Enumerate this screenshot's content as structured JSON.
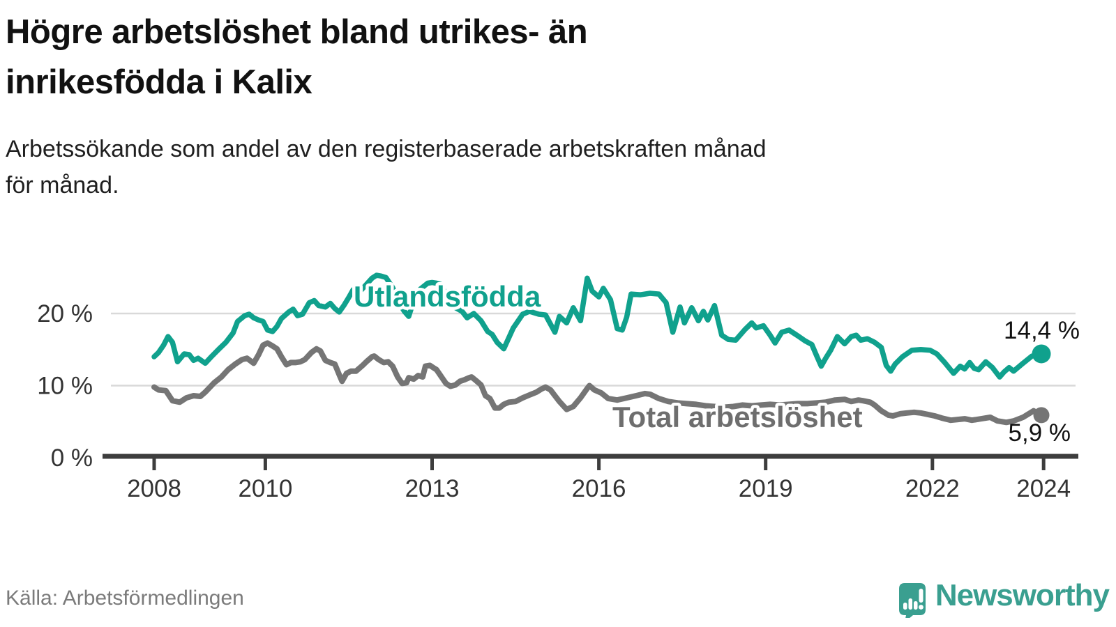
{
  "header": {
    "title_lines": [
      "Högre arbetslöshet bland utrikes- än",
      "inrikesfödda i Kalix"
    ],
    "subtitle_lines": [
      "Arbetssökande som andel av den registerbaserade arbetskraften månad",
      "för månad."
    ]
  },
  "footer": {
    "source": "Källa: Arbetsförmedlingen",
    "brand": "Newsworthy"
  },
  "colors": {
    "series_foreign_born": "#10a18d",
    "series_total": "#757575",
    "axis": "#3d3d3d",
    "grid": "#d9d9d9",
    "annotation": "#111111",
    "brand_teal": "#3a9f90"
  },
  "chart_data": {
    "type": "line",
    "title": "Högre arbetslöshet bland utrikes- än inrikesfödda i Kalix",
    "subtitle": "Arbetssökande som andel av den registerbaserade arbetskraften månad för månad.",
    "xlabel": "",
    "ylabel": "",
    "x_unit": "decimal_year",
    "xlim": [
      2007.9,
      2024.6
    ],
    "ylim": [
      0,
      27
    ],
    "grid": "horizontal",
    "legend_position": "inline-labels",
    "x_ticks": [
      2008,
      2010,
      2013,
      2016,
      2019,
      2022,
      2024
    ],
    "y_ticks": [
      {
        "value": 20,
        "label": "20 %"
      },
      {
        "value": 10,
        "label": "10 %"
      },
      {
        "value": 0,
        "label": "0 %"
      }
    ],
    "annotations": [
      {
        "series": "Utlandsfödda",
        "text": "14,4 %"
      },
      {
        "series": "Total arbetslöshet",
        "text": "5,9 %"
      }
    ],
    "series": [
      {
        "name": "Utlandsfödda",
        "color": "#10a18d",
        "stroke_width": 7.5,
        "end_value": 14.4,
        "end_label": "14,4 %",
        "points": [
          [
            2008.0,
            14.0
          ],
          [
            2008.08,
            14.6
          ],
          [
            2008.17,
            15.6
          ],
          [
            2008.25,
            16.8
          ],
          [
            2008.33,
            16.0
          ],
          [
            2008.42,
            13.3
          ],
          [
            2008.54,
            14.4
          ],
          [
            2008.63,
            14.3
          ],
          [
            2008.71,
            13.5
          ],
          [
            2008.79,
            13.8
          ],
          [
            2008.92,
            13.1
          ],
          [
            2009.04,
            14.1
          ],
          [
            2009.17,
            15.1
          ],
          [
            2009.29,
            16.0
          ],
          [
            2009.42,
            17.3
          ],
          [
            2009.5,
            18.9
          ],
          [
            2009.63,
            19.7
          ],
          [
            2009.71,
            19.9
          ],
          [
            2009.79,
            19.4
          ],
          [
            2009.88,
            19.1
          ],
          [
            2009.96,
            18.9
          ],
          [
            2010.04,
            17.7
          ],
          [
            2010.13,
            17.5
          ],
          [
            2010.21,
            18.2
          ],
          [
            2010.29,
            19.3
          ],
          [
            2010.42,
            20.2
          ],
          [
            2010.5,
            20.6
          ],
          [
            2010.58,
            19.7
          ],
          [
            2010.67,
            19.9
          ],
          [
            2010.79,
            21.5
          ],
          [
            2010.88,
            21.8
          ],
          [
            2010.96,
            21.1
          ],
          [
            2011.08,
            20.9
          ],
          [
            2011.17,
            21.4
          ],
          [
            2011.25,
            20.7
          ],
          [
            2011.33,
            20.2
          ],
          [
            2011.42,
            21.2
          ],
          [
            2011.5,
            22.2
          ],
          [
            2011.58,
            23.3
          ],
          [
            2011.67,
            22.8
          ],
          [
            2011.79,
            23.8
          ],
          [
            2011.92,
            24.9
          ],
          [
            2012.0,
            25.3
          ],
          [
            2012.08,
            25.2
          ],
          [
            2012.17,
            25.0
          ],
          [
            2012.29,
            23.6
          ],
          [
            2012.42,
            21.3
          ],
          [
            2012.5,
            20.3
          ],
          [
            2012.58,
            19.6
          ],
          [
            2012.67,
            21.8
          ],
          [
            2012.79,
            23.4
          ],
          [
            2012.92,
            24.2
          ],
          [
            2013.0,
            24.3
          ],
          [
            2013.08,
            24.2
          ],
          [
            2013.17,
            24.0
          ],
          [
            2013.29,
            21.7
          ],
          [
            2013.42,
            20.8
          ],
          [
            2013.54,
            20.3
          ],
          [
            2013.63,
            19.4
          ],
          [
            2013.75,
            20.0
          ],
          [
            2013.88,
            19.0
          ],
          [
            2014.0,
            17.5
          ],
          [
            2014.08,
            17.1
          ],
          [
            2014.17,
            16.0
          ],
          [
            2014.29,
            15.1
          ],
          [
            2014.46,
            18.0
          ],
          [
            2014.63,
            19.9
          ],
          [
            2014.75,
            20.3
          ],
          [
            2014.92,
            19.9
          ],
          [
            2015.04,
            19.8
          ],
          [
            2015.21,
            17.4
          ],
          [
            2015.29,
            19.6
          ],
          [
            2015.42,
            18.7
          ],
          [
            2015.54,
            20.8
          ],
          [
            2015.67,
            19.0
          ],
          [
            2015.79,
            24.9
          ],
          [
            2015.88,
            23.1
          ],
          [
            2016.0,
            22.3
          ],
          [
            2016.08,
            23.5
          ],
          [
            2016.21,
            21.9
          ],
          [
            2016.33,
            17.9
          ],
          [
            2016.42,
            17.7
          ],
          [
            2016.5,
            19.5
          ],
          [
            2016.58,
            22.7
          ],
          [
            2016.75,
            22.6
          ],
          [
            2016.92,
            22.8
          ],
          [
            2017.08,
            22.7
          ],
          [
            2017.21,
            21.5
          ],
          [
            2017.33,
            17.4
          ],
          [
            2017.46,
            20.9
          ],
          [
            2017.54,
            18.7
          ],
          [
            2017.67,
            20.8
          ],
          [
            2017.79,
            19.0
          ],
          [
            2017.88,
            20.3
          ],
          [
            2017.96,
            19.1
          ],
          [
            2018.08,
            21.1
          ],
          [
            2018.21,
            17.0
          ],
          [
            2018.33,
            16.4
          ],
          [
            2018.46,
            16.3
          ],
          [
            2018.63,
            17.8
          ],
          [
            2018.75,
            18.7
          ],
          [
            2018.83,
            18.0
          ],
          [
            2018.96,
            18.3
          ],
          [
            2019.08,
            17.0
          ],
          [
            2019.17,
            15.9
          ],
          [
            2019.29,
            17.4
          ],
          [
            2019.42,
            17.7
          ],
          [
            2019.58,
            16.9
          ],
          [
            2019.71,
            16.2
          ],
          [
            2019.83,
            15.7
          ],
          [
            2019.92,
            14.1
          ],
          [
            2020.0,
            12.7
          ],
          [
            2020.08,
            13.8
          ],
          [
            2020.17,
            14.9
          ],
          [
            2020.29,
            16.8
          ],
          [
            2020.42,
            15.8
          ],
          [
            2020.54,
            16.8
          ],
          [
            2020.63,
            17.0
          ],
          [
            2020.71,
            16.3
          ],
          [
            2020.83,
            16.5
          ],
          [
            2020.96,
            16.0
          ],
          [
            2021.08,
            15.3
          ],
          [
            2021.17,
            12.8
          ],
          [
            2021.25,
            12.0
          ],
          [
            2021.33,
            13.0
          ],
          [
            2021.46,
            14.0
          ],
          [
            2021.63,
            14.9
          ],
          [
            2021.79,
            15.0
          ],
          [
            2021.96,
            14.9
          ],
          [
            2022.08,
            14.4
          ],
          [
            2022.21,
            13.3
          ],
          [
            2022.38,
            11.7
          ],
          [
            2022.5,
            12.7
          ],
          [
            2022.58,
            12.3
          ],
          [
            2022.67,
            13.2
          ],
          [
            2022.75,
            12.4
          ],
          [
            2022.83,
            12.2
          ],
          [
            2022.96,
            13.3
          ],
          [
            2023.08,
            12.5
          ],
          [
            2023.21,
            11.2
          ],
          [
            2023.29,
            11.9
          ],
          [
            2023.38,
            12.5
          ],
          [
            2023.46,
            12.0
          ],
          [
            2023.63,
            13.1
          ],
          [
            2023.79,
            14.1
          ],
          [
            2023.96,
            14.4
          ]
        ]
      },
      {
        "name": "Total arbetslöshet",
        "color": "#757575",
        "stroke_width": 8,
        "end_value": 5.9,
        "end_label": "5,9 %",
        "points": [
          [
            2008.0,
            9.8
          ],
          [
            2008.08,
            9.4
          ],
          [
            2008.21,
            9.3
          ],
          [
            2008.33,
            7.9
          ],
          [
            2008.46,
            7.7
          ],
          [
            2008.58,
            8.3
          ],
          [
            2008.71,
            8.6
          ],
          [
            2008.83,
            8.5
          ],
          [
            2008.92,
            9.1
          ],
          [
            2009.08,
            10.4
          ],
          [
            2009.21,
            11.2
          ],
          [
            2009.33,
            12.2
          ],
          [
            2009.46,
            13.0
          ],
          [
            2009.58,
            13.6
          ],
          [
            2009.67,
            13.8
          ],
          [
            2009.79,
            13.1
          ],
          [
            2009.88,
            14.3
          ],
          [
            2009.96,
            15.6
          ],
          [
            2010.04,
            15.9
          ],
          [
            2010.13,
            15.5
          ],
          [
            2010.21,
            15.1
          ],
          [
            2010.29,
            14.0
          ],
          [
            2010.38,
            12.9
          ],
          [
            2010.46,
            13.2
          ],
          [
            2010.54,
            13.2
          ],
          [
            2010.63,
            13.3
          ],
          [
            2010.71,
            13.6
          ],
          [
            2010.83,
            14.6
          ],
          [
            2010.92,
            15.1
          ],
          [
            2010.99,
            14.8
          ],
          [
            2011.08,
            13.5
          ],
          [
            2011.17,
            13.2
          ],
          [
            2011.25,
            13.0
          ],
          [
            2011.33,
            11.5
          ],
          [
            2011.38,
            10.6
          ],
          [
            2011.46,
            11.7
          ],
          [
            2011.54,
            12.0
          ],
          [
            2011.63,
            12.0
          ],
          [
            2011.75,
            12.8
          ],
          [
            2011.83,
            13.4
          ],
          [
            2011.92,
            14.0
          ],
          [
            2011.96,
            14.1
          ],
          [
            2012.04,
            13.6
          ],
          [
            2012.13,
            13.2
          ],
          [
            2012.21,
            13.3
          ],
          [
            2012.29,
            12.7
          ],
          [
            2012.38,
            11.2
          ],
          [
            2012.46,
            10.3
          ],
          [
            2012.54,
            10.4
          ],
          [
            2012.58,
            11.1
          ],
          [
            2012.67,
            10.9
          ],
          [
            2012.75,
            11.4
          ],
          [
            2012.83,
            11.2
          ],
          [
            2012.88,
            12.7
          ],
          [
            2012.96,
            12.8
          ],
          [
            2013.04,
            12.4
          ],
          [
            2013.08,
            12.2
          ],
          [
            2013.17,
            11.2
          ],
          [
            2013.25,
            10.3
          ],
          [
            2013.33,
            9.9
          ],
          [
            2013.42,
            10.1
          ],
          [
            2013.5,
            10.6
          ],
          [
            2013.58,
            10.8
          ],
          [
            2013.67,
            11.1
          ],
          [
            2013.71,
            11.2
          ],
          [
            2013.79,
            10.7
          ],
          [
            2013.88,
            10.1
          ],
          [
            2013.96,
            8.6
          ],
          [
            2014.04,
            8.2
          ],
          [
            2014.13,
            6.9
          ],
          [
            2014.21,
            6.9
          ],
          [
            2014.29,
            7.4
          ],
          [
            2014.38,
            7.7
          ],
          [
            2014.5,
            7.8
          ],
          [
            2014.63,
            8.3
          ],
          [
            2014.75,
            8.7
          ],
          [
            2014.88,
            9.1
          ],
          [
            2014.96,
            9.5
          ],
          [
            2015.04,
            9.8
          ],
          [
            2015.13,
            9.4
          ],
          [
            2015.21,
            8.6
          ],
          [
            2015.29,
            7.8
          ],
          [
            2015.42,
            6.7
          ],
          [
            2015.54,
            7.1
          ],
          [
            2015.67,
            8.3
          ],
          [
            2015.79,
            9.6
          ],
          [
            2015.83,
            10.0
          ],
          [
            2015.92,
            9.4
          ],
          [
            2016.04,
            9.0
          ],
          [
            2016.17,
            8.2
          ],
          [
            2016.33,
            8.0
          ],
          [
            2016.5,
            8.3
          ],
          [
            2016.67,
            8.6
          ],
          [
            2016.83,
            8.9
          ],
          [
            2016.92,
            8.8
          ],
          [
            2017.08,
            8.2
          ],
          [
            2017.25,
            7.8
          ],
          [
            2017.42,
            7.6
          ],
          [
            2017.58,
            7.5
          ],
          [
            2017.75,
            7.4
          ],
          [
            2017.92,
            7.2
          ],
          [
            2018.08,
            7.1
          ],
          [
            2018.25,
            7.0
          ],
          [
            2018.42,
            7.1
          ],
          [
            2018.58,
            7.3
          ],
          [
            2018.75,
            7.2
          ],
          [
            2018.92,
            7.3
          ],
          [
            2019.08,
            7.4
          ],
          [
            2019.25,
            7.3
          ],
          [
            2019.42,
            7.4
          ],
          [
            2019.58,
            7.5
          ],
          [
            2019.75,
            7.5
          ],
          [
            2019.92,
            7.6
          ],
          [
            2020.08,
            7.7
          ],
          [
            2020.25,
            8.0
          ],
          [
            2020.42,
            8.1
          ],
          [
            2020.54,
            7.8
          ],
          [
            2020.67,
            8.0
          ],
          [
            2020.75,
            7.9
          ],
          [
            2020.88,
            7.7
          ],
          [
            2020.96,
            7.3
          ],
          [
            2021.08,
            6.5
          ],
          [
            2021.21,
            5.9
          ],
          [
            2021.29,
            5.8
          ],
          [
            2021.42,
            6.1
          ],
          [
            2021.54,
            6.2
          ],
          [
            2021.67,
            6.3
          ],
          [
            2021.79,
            6.2
          ],
          [
            2021.92,
            6.0
          ],
          [
            2022.04,
            5.8
          ],
          [
            2022.17,
            5.5
          ],
          [
            2022.33,
            5.2
          ],
          [
            2022.46,
            5.3
          ],
          [
            2022.58,
            5.4
          ],
          [
            2022.71,
            5.2
          ],
          [
            2022.88,
            5.4
          ],
          [
            2023.04,
            5.6
          ],
          [
            2023.17,
            5.1
          ],
          [
            2023.33,
            4.9
          ],
          [
            2023.46,
            5.1
          ],
          [
            2023.63,
            5.6
          ],
          [
            2023.82,
            6.5
          ],
          [
            2023.96,
            5.9
          ]
        ]
      }
    ]
  }
}
